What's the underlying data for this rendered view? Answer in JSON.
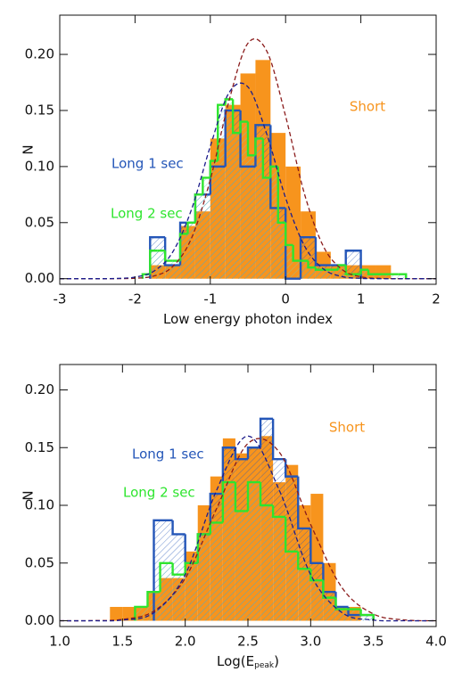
{
  "chart_data": [
    {
      "type": "histogram",
      "xlabel": [
        "Low energy photon index"
      ],
      "ylabel": "N",
      "xlim": [
        -3,
        2
      ],
      "ylim": [
        -0.005,
        0.235
      ],
      "xticks": [
        -3,
        -2,
        -1,
        0,
        1,
        2
      ],
      "yticks": [
        {
          "value": 0,
          "label": "0.00"
        },
        {
          "value": 0.05,
          "label": "0.05"
        },
        {
          "value": 0.1,
          "label": "0.10"
        },
        {
          "value": 0.15,
          "label": "0.15"
        },
        {
          "value": 0.2,
          "label": "0.20"
        }
      ],
      "series": [
        {
          "name": "Short",
          "color": "#f7941d",
          "fill": "solid",
          "bins": [
            -1.8,
            -1.6,
            -1.4,
            -1.2,
            -1.0,
            -0.8,
            -0.6,
            -0.4,
            -0.2,
            0.0,
            0.2,
            0.4,
            0.6,
            0.8,
            1.0,
            1.2,
            1.4
          ],
          "values": [
            0.012,
            0.012,
            0.047,
            0.06,
            0.125,
            0.155,
            0.183,
            0.195,
            0.13,
            0.1,
            0.06,
            0.024,
            0.012,
            0.012,
            0.012,
            0.012
          ]
        },
        {
          "name": "Long 1 sec",
          "color": "#2456b8",
          "fill": "hatch",
          "bins": [
            -1.8,
            -1.6,
            -1.4,
            -1.2,
            -1.0,
            -0.8,
            -0.6,
            -0.4,
            -0.2,
            0.0,
            0.2,
            0.4,
            0.6,
            0.8,
            1.0
          ],
          "values": [
            0.037,
            0.012,
            0.05,
            0.075,
            0.1,
            0.15,
            0.1,
            0.137,
            0.063,
            0.0,
            0.037,
            0.012,
            0.012,
            0.025
          ]
        },
        {
          "name": "Long 2 sec",
          "color": "#2ee52e",
          "fill": "hatch",
          "bins": [
            -1.9,
            -1.8,
            -1.7,
            -1.6,
            -1.5,
            -1.4,
            -1.3,
            -1.2,
            -1.1,
            -1.0,
            -0.9,
            -0.8,
            -0.7,
            -0.6,
            -0.5,
            -0.4,
            -0.3,
            -0.2,
            -0.1,
            0.0,
            0.1,
            0.2,
            0.3,
            0.4,
            0.5,
            0.6,
            0.7,
            0.8,
            0.9,
            1.0,
            1.1,
            1.2,
            1.3,
            1.4,
            1.5,
            1.6
          ],
          "values": [
            0.004,
            0.025,
            0.025,
            0.016,
            0.016,
            0.04,
            0.05,
            0.075,
            0.09,
            0.105,
            0.155,
            0.16,
            0.13,
            0.14,
            0.11,
            0.125,
            0.09,
            0.1,
            0.05,
            0.03,
            0.016,
            0.016,
            0.01,
            0.008,
            0.008,
            0.008,
            0.012,
            0.004,
            0.004,
            0.008,
            0.004,
            0.004,
            0.004,
            0.004,
            0.004
          ]
        }
      ],
      "curve_x": [
        -3,
        -2.75,
        -2.5,
        -2.25,
        -2,
        -1.75,
        -1.5,
        -1.25,
        -1,
        -0.75,
        -0.5,
        -0.25,
        0,
        0.25,
        0.5,
        0.75,
        1,
        1.25,
        1.5,
        1.75,
        2
      ],
      "curves": [
        {
          "color": "#8b1c1c",
          "values": [
            0,
            0,
            0,
            5e-05,
            0.0004,
            0.0024,
            0.0108,
            0.0361,
            0.0884,
            0.159,
            0.21,
            0.203,
            0.145,
            0.0758,
            0.0291,
            0.0082,
            0.0017,
            0.0003,
            0,
            0,
            0
          ]
        },
        {
          "color": "#1c1c8b",
          "values": [
            0,
            0,
            2e-05,
            0.0002,
            0.0014,
            0.0067,
            0.0237,
            0.0617,
            0.118,
            0.166,
            0.171,
            0.129,
            0.072,
            0.0294,
            0.0088,
            0.0019,
            0.0003,
            0,
            0,
            0,
            0
          ]
        }
      ]
    },
    {
      "type": "histogram",
      "xlabel": [
        "Log(E",
        "peak",
        ")"
      ],
      "ylabel": "N",
      "xlim": [
        1,
        4
      ],
      "ylim": [
        -0.005,
        0.222
      ],
      "xticks": [
        {
          "value": 1,
          "label": "1.0"
        },
        {
          "value": 1.5,
          "label": "1.5"
        },
        {
          "value": 2,
          "label": "2.0"
        },
        {
          "value": 2.5,
          "label": "2.5"
        },
        {
          "value": 3,
          "label": "3.0"
        },
        {
          "value": 3.5,
          "label": "3.5"
        },
        {
          "value": 4,
          "label": "4.0"
        }
      ],
      "yticks": [
        {
          "value": 0,
          "label": "0.00"
        },
        {
          "value": 0.05,
          "label": "0.05"
        },
        {
          "value": 0.1,
          "label": "0.10"
        },
        {
          "value": 0.15,
          "label": "0.15"
        },
        {
          "value": 0.2,
          "label": "0.20"
        }
      ],
      "series": [
        {
          "name": "Short",
          "color": "#f7941d",
          "fill": "solid",
          "bins": [
            1.4,
            1.5,
            1.6,
            1.7,
            1.8,
            1.9,
            2.0,
            2.1,
            2.2,
            2.3,
            2.4,
            2.5,
            2.6,
            2.7,
            2.8,
            2.9,
            3.0,
            3.1,
            3.2,
            3.3,
            3.4
          ],
          "values": [
            0.012,
            0.012,
            0.012,
            0.025,
            0.037,
            0.037,
            0.06,
            0.1,
            0.125,
            0.158,
            0.145,
            0.15,
            0.16,
            0.12,
            0.135,
            0.1,
            0.11,
            0.05,
            0.012,
            0.012
          ]
        },
        {
          "name": "Long 1 sec",
          "color": "#2456b8",
          "fill": "hatch",
          "bins": [
            1.75,
            1.9,
            2.0,
            2.1,
            2.2,
            2.3,
            2.4,
            2.5,
            2.6,
            2.7,
            2.8,
            2.9,
            3.0,
            3.1,
            3.2,
            3.3,
            3.4,
            3.5
          ],
          "values": [
            0.087,
            0.075,
            0.05,
            0.075,
            0.11,
            0.15,
            0.14,
            0.15,
            0.175,
            0.14,
            0.125,
            0.08,
            0.05,
            0.025,
            0.012,
            0.005,
            0.005
          ]
        },
        {
          "name": "Long 2 sec",
          "color": "#2ee52e",
          "fill": "hatch",
          "bins": [
            1.6,
            1.7,
            1.8,
            1.9,
            2.0,
            2.1,
            2.2,
            2.3,
            2.4,
            2.5,
            2.6,
            2.7,
            2.8,
            2.9,
            3.0,
            3.1,
            3.2,
            3.3,
            3.4,
            3.5
          ],
          "values": [
            0.012,
            0.025,
            0.05,
            0.04,
            0.05,
            0.075,
            0.085,
            0.12,
            0.095,
            0.12,
            0.1,
            0.09,
            0.06,
            0.045,
            0.035,
            0.02,
            0.01,
            0.01,
            0.005
          ]
        }
      ],
      "curve_x": [
        1,
        1.25,
        1.5,
        1.75,
        2,
        2.25,
        2.5,
        2.75,
        3,
        3.25,
        3.5,
        3.75,
        4
      ],
      "curves": [
        {
          "color": "#8b1c1c",
          "values": [
            0,
            0.0001,
            0.0012,
            0.0084,
            0.0368,
            0.0971,
            0.1536,
            0.146,
            0.0833,
            0.0286,
            0.0059,
            0.0007,
            0
          ]
        },
        {
          "color": "#1c1c8b",
          "values": [
            0,
            0,
            0.0006,
            0.007,
            0.0399,
            0.113,
            0.16,
            0.113,
            0.0399,
            0.007,
            0.0006,
            0,
            0
          ]
        }
      ]
    }
  ]
}
